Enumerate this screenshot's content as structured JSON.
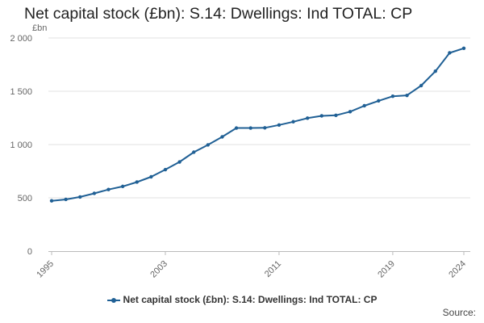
{
  "chart_data": {
    "type": "line",
    "title": "Net capital stock (£bn): S.14: Dwellings: Ind TOTAL: CP",
    "ylabel": "£bn",
    "xlabel": "",
    "ylim": [
      0,
      2000
    ],
    "yticks": [
      0,
      500,
      1000,
      1500,
      2000
    ],
    "ytick_labels": [
      "0",
      "500",
      "1 000",
      "1 500",
      "2 000"
    ],
    "xlim": [
      1995,
      2024
    ],
    "xticks": [
      1995,
      2003,
      2011,
      2019,
      2024
    ],
    "xtick_labels": [
      "1995",
      "2003",
      "2011",
      "2019",
      "2024"
    ],
    "grid": "horizontal",
    "legend_position": "bottom",
    "x": [
      1995,
      1996,
      1997,
      1998,
      1999,
      2000,
      2001,
      2002,
      2003,
      2004,
      2005,
      2006,
      2007,
      2008,
      2009,
      2010,
      2011,
      2012,
      2013,
      2014,
      2015,
      2016,
      2017,
      2018,
      2019,
      2020,
      2021,
      2022,
      2023,
      2024
    ],
    "series": [
      {
        "name": "Net capital stock (£bn): S.14: Dwellings: Ind TOTAL: CP",
        "color": "#206095",
        "values": [
          472,
          485,
          508,
          542,
          578,
          607,
          648,
          697,
          765,
          837,
          928,
          997,
          1072,
          1155,
          1155,
          1157,
          1183,
          1214,
          1248,
          1269,
          1274,
          1308,
          1364,
          1410,
          1453,
          1461,
          1553,
          1688,
          1860,
          1903
        ]
      }
    ]
  },
  "source_label": "Source:"
}
